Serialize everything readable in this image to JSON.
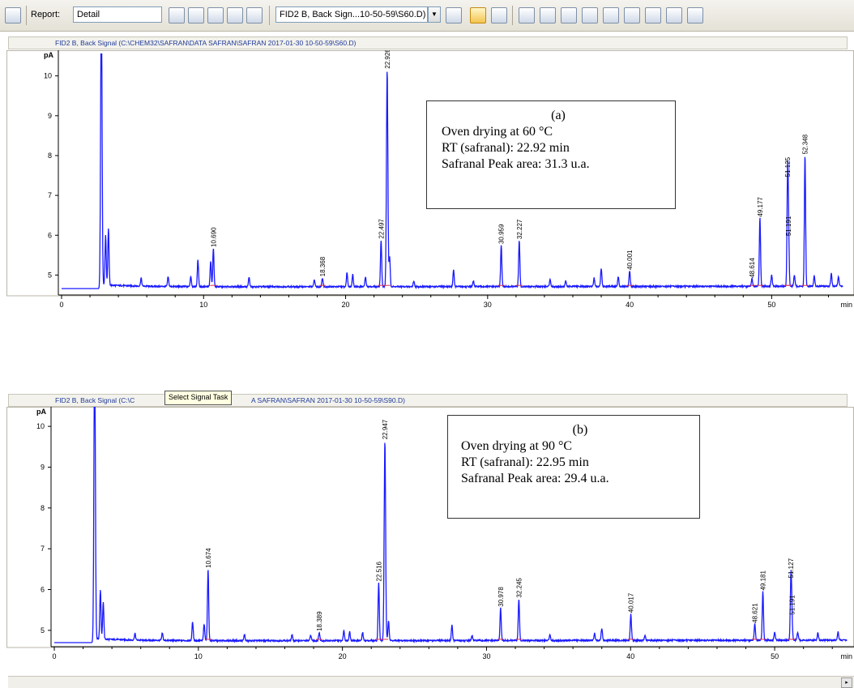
{
  "toolbar": {
    "report_label": "Report:",
    "report_value": "Detail",
    "signal_select": "FID2 B, Back Sign...10-50-59\\S60.D)",
    "tooltip": "Select Signal Task"
  },
  "panels": [
    {
      "header": "FID2 B, Back Signal (C:\\CHEM32\\SAFRAN\\DATA SAFRAN\\SAFRAN 2017-01-30 10-50-59\\S60.D)",
      "annotation": [
        "(a)",
        "Oven drying at 60 °C",
        "RT (safranal): 22.92 min",
        "Safranal Peak area: 31.3 u.a."
      ]
    },
    {
      "header_left": "FID2 B, Back Signal (C:\\C",
      "header_right": "A SAFRAN\\SAFRAN 2017-01-30 10-50-59\\S90.D)",
      "annotation": [
        "(b)",
        "Oven drying at 90 °C",
        "RT (safranal): 22.95 min",
        "Safranal Peak area: 29.4 u.a."
      ]
    }
  ],
  "chart_data": [
    {
      "type": "line",
      "ylabel": "pA",
      "xlabel": "min",
      "xlim": [
        0,
        55
      ],
      "ylim": [
        4.5,
        10.4
      ],
      "xticks": [
        0,
        10,
        20,
        30,
        40,
        50
      ],
      "yticks": [
        5,
        6,
        7,
        8,
        9,
        10
      ],
      "baseline": 4.66,
      "line_color": "#1a1aff",
      "peak_labels": [
        {
          "rt": 10.69,
          "label": "10.690",
          "height": 5.62
        },
        {
          "rt": 18.368,
          "label": "18.368",
          "height": 4.88
        },
        {
          "rt": 22.497,
          "label": "22.497",
          "height": 5.83
        },
        {
          "rt": 22.926,
          "label": "22.926",
          "height": 10.1
        },
        {
          "rt": 30.959,
          "label": "30.959",
          "height": 5.7
        },
        {
          "rt": 32.227,
          "label": "32.227",
          "height": 5.82
        },
        {
          "rt": 40.001,
          "label": "40.001",
          "height": 5.05
        },
        {
          "rt": 48.614,
          "label": "48.614",
          "height": 4.85
        },
        {
          "rt": 49.177,
          "label": "49.177",
          "height": 6.38
        },
        {
          "rt": 51.125,
          "label": "51.125",
          "height": 7.38
        },
        {
          "rt": 51.191,
          "label": "51.191",
          "height": 5.9
        },
        {
          "rt": 52.348,
          "label": "52.348",
          "height": 7.95
        }
      ],
      "unlabeled_peaks": [
        {
          "rt": 2.8,
          "height": 12.0
        },
        {
          "rt": 3.1,
          "height": 5.9
        },
        {
          "rt": 3.3,
          "height": 6.08
        },
        {
          "rt": 5.6,
          "height": 4.86
        },
        {
          "rt": 7.5,
          "height": 4.9
        },
        {
          "rt": 9.1,
          "height": 4.92
        },
        {
          "rt": 9.6,
          "height": 5.33
        },
        {
          "rt": 10.5,
          "height": 5.3
        },
        {
          "rt": 13.2,
          "height": 4.9
        },
        {
          "rt": 17.8,
          "height": 4.84
        },
        {
          "rt": 20.1,
          "height": 5.02
        },
        {
          "rt": 20.5,
          "height": 4.97
        },
        {
          "rt": 21.4,
          "height": 4.9
        },
        {
          "rt": 23.1,
          "height": 5.4
        },
        {
          "rt": 24.8,
          "height": 4.8
        },
        {
          "rt": 27.6,
          "height": 5.08
        },
        {
          "rt": 29.0,
          "height": 4.8
        },
        {
          "rt": 34.4,
          "height": 4.85
        },
        {
          "rt": 35.5,
          "height": 4.8
        },
        {
          "rt": 37.5,
          "height": 4.88
        },
        {
          "rt": 38.0,
          "height": 5.12
        },
        {
          "rt": 39.2,
          "height": 4.9
        },
        {
          "rt": 50.0,
          "height": 4.95
        },
        {
          "rt": 51.6,
          "height": 4.95
        },
        {
          "rt": 53.0,
          "height": 4.92
        },
        {
          "rt": 54.2,
          "height": 4.98
        },
        {
          "rt": 54.7,
          "height": 4.9
        }
      ]
    },
    {
      "type": "line",
      "ylabel": "pA",
      "xlabel": "min",
      "xlim": [
        0,
        55
      ],
      "ylim": [
        4.6,
        10.4
      ],
      "xticks": [
        0,
        10,
        20,
        30,
        40,
        50
      ],
      "yticks": [
        5,
        6,
        7,
        8,
        9,
        10
      ],
      "baseline": 4.7,
      "line_color": "#1a1aff",
      "peak_labels": [
        {
          "rt": 10.674,
          "label": "10.674",
          "height": 6.45
        },
        {
          "rt": 18.389,
          "label": "18.389",
          "height": 4.9
        },
        {
          "rt": 22.516,
          "label": "22.516",
          "height": 6.12
        },
        {
          "rt": 22.947,
          "label": "22.947",
          "height": 9.6
        },
        {
          "rt": 30.978,
          "label": "30.978",
          "height": 5.5
        },
        {
          "rt": 32.245,
          "label": "32.245",
          "height": 5.72
        },
        {
          "rt": 40.017,
          "label": "40.017",
          "height": 5.35
        },
        {
          "rt": 48.621,
          "label": "48.621",
          "height": 5.1
        },
        {
          "rt": 49.181,
          "label": "49.181",
          "height": 5.9
        },
        {
          "rt": 51.127,
          "label": "51.127",
          "height": 6.2
        },
        {
          "rt": 51.191,
          "label": "51.191",
          "height": 5.3
        }
      ],
      "unlabeled_peaks": [
        {
          "rt": 2.8,
          "height": 12.0
        },
        {
          "rt": 3.2,
          "height": 5.9
        },
        {
          "rt": 3.4,
          "height": 5.6
        },
        {
          "rt": 5.6,
          "height": 4.86
        },
        {
          "rt": 7.5,
          "height": 4.88
        },
        {
          "rt": 9.6,
          "height": 5.15
        },
        {
          "rt": 10.4,
          "height": 5.1
        },
        {
          "rt": 13.2,
          "height": 4.85
        },
        {
          "rt": 16.5,
          "height": 4.84
        },
        {
          "rt": 17.8,
          "height": 4.84
        },
        {
          "rt": 20.1,
          "height": 4.95
        },
        {
          "rt": 20.5,
          "height": 4.92
        },
        {
          "rt": 21.4,
          "height": 4.9
        },
        {
          "rt": 23.2,
          "height": 5.2
        },
        {
          "rt": 27.6,
          "height": 5.08
        },
        {
          "rt": 29.0,
          "height": 4.82
        },
        {
          "rt": 34.4,
          "height": 4.85
        },
        {
          "rt": 37.5,
          "height": 4.88
        },
        {
          "rt": 38.0,
          "height": 5.0
        },
        {
          "rt": 41.0,
          "height": 4.82
        },
        {
          "rt": 50.0,
          "height": 4.9
        },
        {
          "rt": 51.6,
          "height": 4.9
        },
        {
          "rt": 53.0,
          "height": 4.88
        },
        {
          "rt": 54.4,
          "height": 4.9
        }
      ]
    }
  ]
}
